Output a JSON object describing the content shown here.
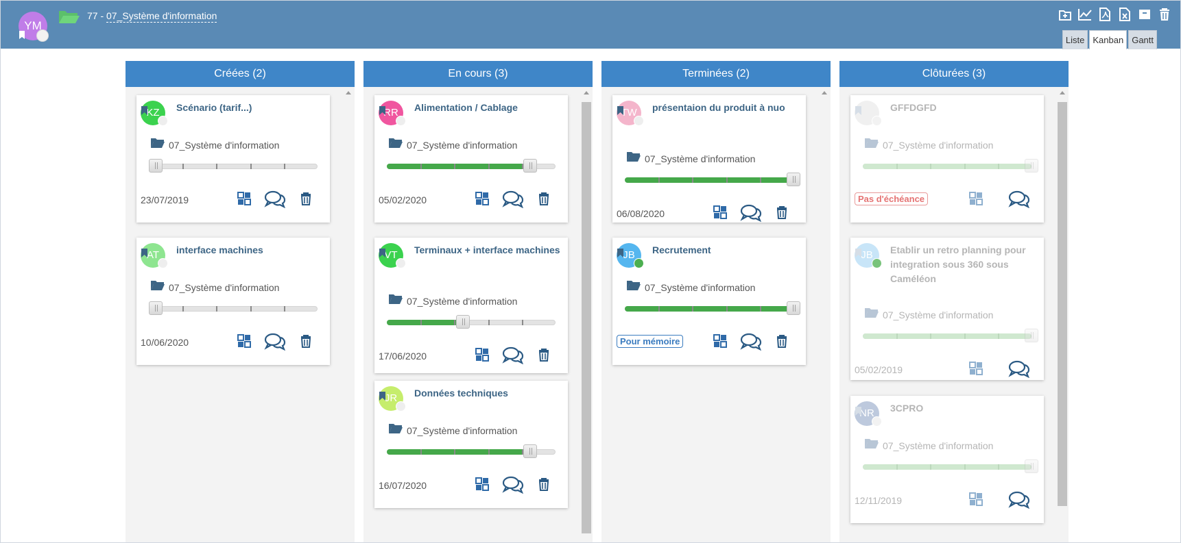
{
  "header": {
    "avatar_initials": "YM",
    "project_number": "77 -",
    "project_name": "07_Système d'information",
    "toolbar_icons": [
      "add-doc-icon",
      "chart-icon",
      "pdf-icon",
      "excel-icon",
      "archive-icon",
      "trash-icon"
    ],
    "view_tabs": [
      "Liste",
      "Kanban",
      "Gantt"
    ],
    "active_tab": "Kanban"
  },
  "colors": {
    "header": "#5a8ab5",
    "column_header": "#3f86c8",
    "progress": "#45a84a",
    "title": "#3d6585"
  },
  "columns": [
    {
      "title": "Créées (2)",
      "cards": [
        {
          "initials": "KZ",
          "avatar_color": "#3bd24e",
          "title": "Scénario (tarif...)",
          "folder": "07_Système d'information",
          "progress": 0,
          "date": "23/07/2019"
        },
        {
          "initials": "AT",
          "avatar_color": "#8ee590",
          "title": "interface machines",
          "folder": "07_Système d'information",
          "progress": 0,
          "date": "10/06/2020"
        }
      ]
    },
    {
      "title": "En cours (3)",
      "cards": [
        {
          "initials": "RR",
          "avatar_color": "#f0569f",
          "title": "Alimentation / Cablage",
          "folder": "07_Système d'information",
          "progress": 0.85,
          "date": "05/02/2020"
        },
        {
          "initials": "VT",
          "avatar_color": "#3bd24e",
          "title": "Terminaux + interface machines",
          "folder": "07_Système d'information",
          "progress": 0.45,
          "date": "17/06/2020"
        },
        {
          "initials": "JR",
          "avatar_color": "#c6ed6c",
          "title": "Données techniques",
          "folder": "07_Système d'information",
          "progress": 0.85,
          "date": "16/07/2020"
        }
      ]
    },
    {
      "title": "Terminées (2)",
      "cards": [
        {
          "initials": "TW",
          "avatar_color": "#f4b5cb",
          "title": "présentaion du produit à nuo",
          "folder": "07_Système d'information",
          "progress": 1,
          "date": "06/08/2020"
        },
        {
          "initials": "JB",
          "avatar_color": "#55b6ef",
          "title": "Recrutement",
          "folder": "07_Système d'information",
          "progress": 1,
          "badge": "Pour mémoire"
        }
      ]
    },
    {
      "title": "Clôturées (3)",
      "cards": [
        {
          "initials": "",
          "avatar_color": "#ececec",
          "title": "GFFDGFD",
          "folder": "07_Système d'information",
          "progress": 1,
          "badge": "Pas d'échéance"
        },
        {
          "initials": "JB",
          "avatar_color": "#b6ddf6",
          "title": "Etablir un retro planning pour integration sous 360 sous Caméléon",
          "folder": "07_Système d'information",
          "progress": 1,
          "date": "05/02/2019"
        },
        {
          "initials": "NR",
          "avatar_color": "#a7b8d2",
          "title": "3CPRO",
          "folder": "07_Système d'information",
          "progress": 1,
          "date": "12/11/2019"
        }
      ]
    }
  ]
}
